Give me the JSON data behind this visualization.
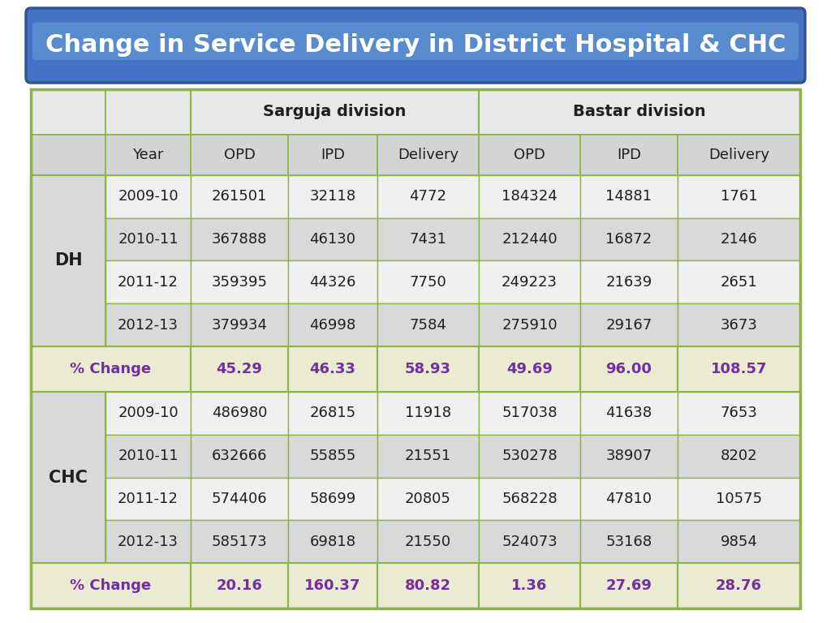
{
  "title": "Change in Service Delivery in District Hospital & CHC",
  "title_color": "#FFFFFF",
  "title_bg_color": "#4472C4",
  "title_bg_dark": "#2F5496",
  "title_bg_light": "#6FA8DC",
  "sub_headers": [
    "",
    "Year",
    "OPD",
    "IPD",
    "Delivery",
    "OPD",
    "IPD",
    "Delivery"
  ],
  "dh_rows": [
    [
      "DH",
      "2009-10",
      "261501",
      "32118",
      "4772",
      "184324",
      "14881",
      "1761"
    ],
    [
      "",
      "2010-11",
      "367888",
      "46130",
      "7431",
      "212440",
      "16872",
      "2146"
    ],
    [
      "",
      "2011-12",
      "359395",
      "44326",
      "7750",
      "249223",
      "21639",
      "2651"
    ],
    [
      "",
      "2012-13",
      "379934",
      "46998",
      "7584",
      "275910",
      "29167",
      "3673"
    ]
  ],
  "dh_change": [
    "% Change",
    "",
    "45.29",
    "46.33",
    "58.93",
    "49.69",
    "96.00",
    "108.57"
  ],
  "chc_rows": [
    [
      "CHC",
      "2009-10",
      "486980",
      "26815",
      "11918",
      "517038",
      "41638",
      "7653"
    ],
    [
      "",
      "2010-11",
      "632666",
      "55855",
      "21551",
      "530278",
      "38907",
      "8202"
    ],
    [
      "",
      "2011-12",
      "574406",
      "58699",
      "20805",
      "568228",
      "47810",
      "10575"
    ],
    [
      "",
      "2012-13",
      "585173",
      "69818",
      "21550",
      "524073",
      "53168",
      "9854"
    ]
  ],
  "chc_change": [
    "% Change",
    "",
    "20.16",
    "160.37",
    "80.82",
    "1.36",
    "27.69",
    "28.76"
  ],
  "bg_color_header1": "#E8E8E8",
  "bg_color_header2": "#D4D4D4",
  "bg_color_row_light": "#F0F0F0",
  "bg_color_row_dark": "#D9D9D9",
  "bg_color_change": "#EBEBD3",
  "bg_color_merged": "#D9D9D9",
  "change_text_color": "#7030A0",
  "grid_color": "#8DB53C",
  "text_color": "#1F1F1F",
  "sarguja_label": "Sarguja division",
  "bastar_label": "Bastar division"
}
